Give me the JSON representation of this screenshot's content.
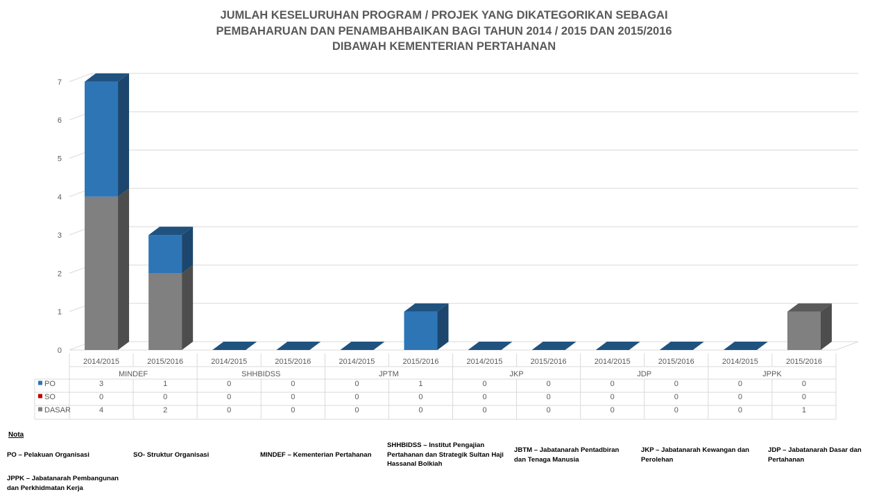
{
  "title_lines": [
    "JUMLAH KESELURUHAN PROGRAM / PROJEK YANG DIKATEGORIKAN SEBAGAI",
    "PEMBAHARUAN DAN PENAMBAHBAIKAN BAGI TAHUN 2014 / 2015 DAN 2015/2016",
    "DIBAWAH KEMENTERIAN PERTAHANAN"
  ],
  "chart_data": {
    "type": "bar",
    "stacked": true,
    "three_d": true,
    "title": "JUMLAH KESELURUHAN PROGRAM / PROJEK YANG DIKATEGORIKAN SEBAGAI PEMBAHARUAN DAN PENAMBAHBAIKAN BAGI TAHUN 2014 / 2015 DAN 2015/2016 DIBAWAH KEMENTERIAN PERTAHANAN",
    "groups": [
      {
        "name": "MINDEF",
        "years": [
          "2014/2015",
          "2015/2016"
        ]
      },
      {
        "name": "SHHBIDSS",
        "years": [
          "2014/2015",
          "2015/2016"
        ]
      },
      {
        "name": "JPTM",
        "years": [
          "2014/2015",
          "2015/2016"
        ]
      },
      {
        "name": "JKP",
        "years": [
          "2014/2015",
          "2015/2016"
        ]
      },
      {
        "name": "JDP",
        "years": [
          "2014/2015",
          "2015/2016"
        ]
      },
      {
        "name": "JPPK",
        "years": [
          "2014/2015",
          "2015/2016"
        ]
      }
    ],
    "series": [
      {
        "name": "PO",
        "color": "#2e75b6",
        "values": [
          3,
          1,
          0,
          0,
          0,
          1,
          0,
          0,
          0,
          0,
          0,
          0
        ]
      },
      {
        "name": "SO",
        "color": "#c00000",
        "values": [
          0,
          0,
          0,
          0,
          0,
          0,
          0,
          0,
          0,
          0,
          0,
          0
        ]
      },
      {
        "name": "DASAR",
        "color": "#808080",
        "values": [
          4,
          2,
          0,
          0,
          0,
          0,
          0,
          0,
          0,
          0,
          0,
          1
        ]
      }
    ],
    "stack_order_bottom_to_top": [
      "DASAR",
      "SO",
      "PO"
    ],
    "y_ticks": [
      0,
      1,
      2,
      3,
      4,
      5,
      6,
      7
    ],
    "ylim": [
      0,
      7
    ],
    "grid": true,
    "data_table": true
  },
  "notes": {
    "heading": "Nota",
    "items": [
      {
        "text": "PO – Pelakuan Organisasi"
      },
      {
        "text": "SO- Struktur Organisasi"
      },
      {
        "text": "MINDEF – Kementerian Pertahanan"
      },
      {
        "text": "SHHBIDSS – Institut Pengajian Pertahanan dan Strategik Sultan Haji Hassanal Bolkiah"
      },
      {
        "text": "JBTM – Jabatanarah Pentadbiran dan Tenaga Manusia"
      },
      {
        "text": "JKP – Jabatanarah Kewangan dan Perolehan"
      },
      {
        "text": "JDP – Jabatanarah Dasar dan Pertahanan"
      },
      {
        "text": "JPPK – Jabatanarah Pembangunan dan Perkhidmatan Kerja"
      }
    ]
  }
}
